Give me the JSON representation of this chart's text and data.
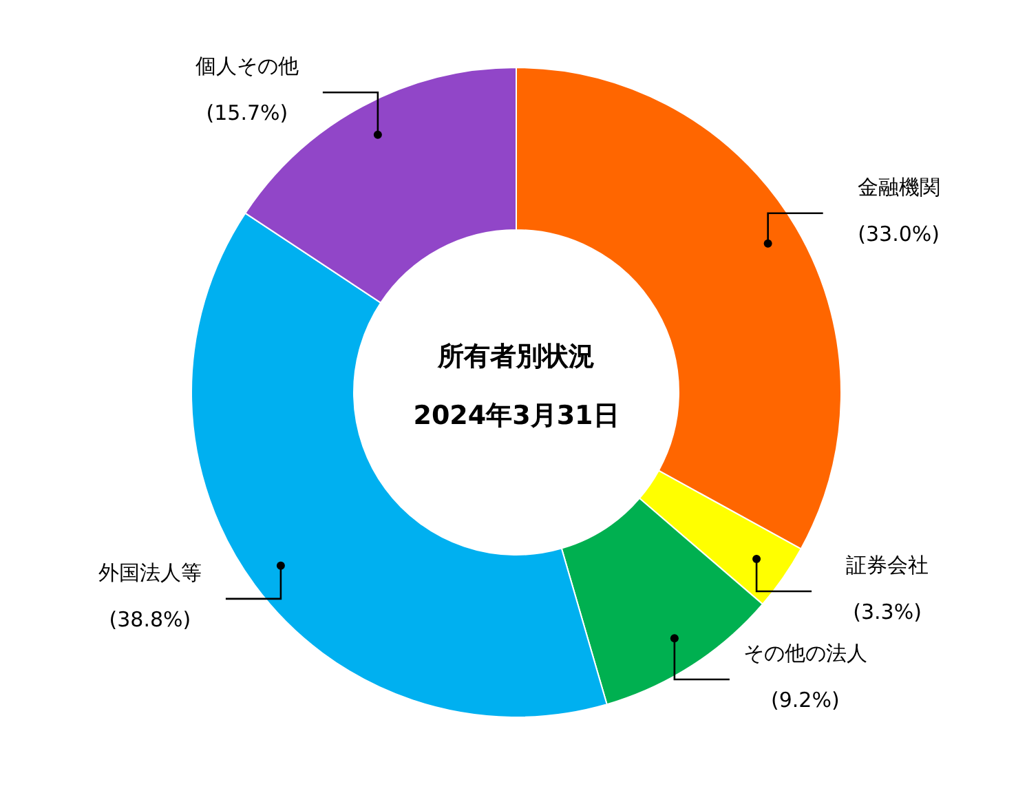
{
  "chart_data": {
    "type": "donut",
    "title": "所有者別状況",
    "subtitle": "2024年3月31日",
    "categories": [
      "金融機関",
      "証券会社",
      "その他の法人",
      "外国法人等",
      "個人その他"
    ],
    "values": [
      33.0,
      3.3,
      9.2,
      38.8,
      15.7
    ],
    "colors": [
      "#ff6600",
      "#ffff00",
      "#00b050",
      "#00b0f0",
      "#9146c8"
    ],
    "value_labels": [
      "(33.0%)",
      "(3.3%)",
      "(9.2%)",
      "(38.8%)",
      "(15.7%)"
    ],
    "legend": false
  }
}
